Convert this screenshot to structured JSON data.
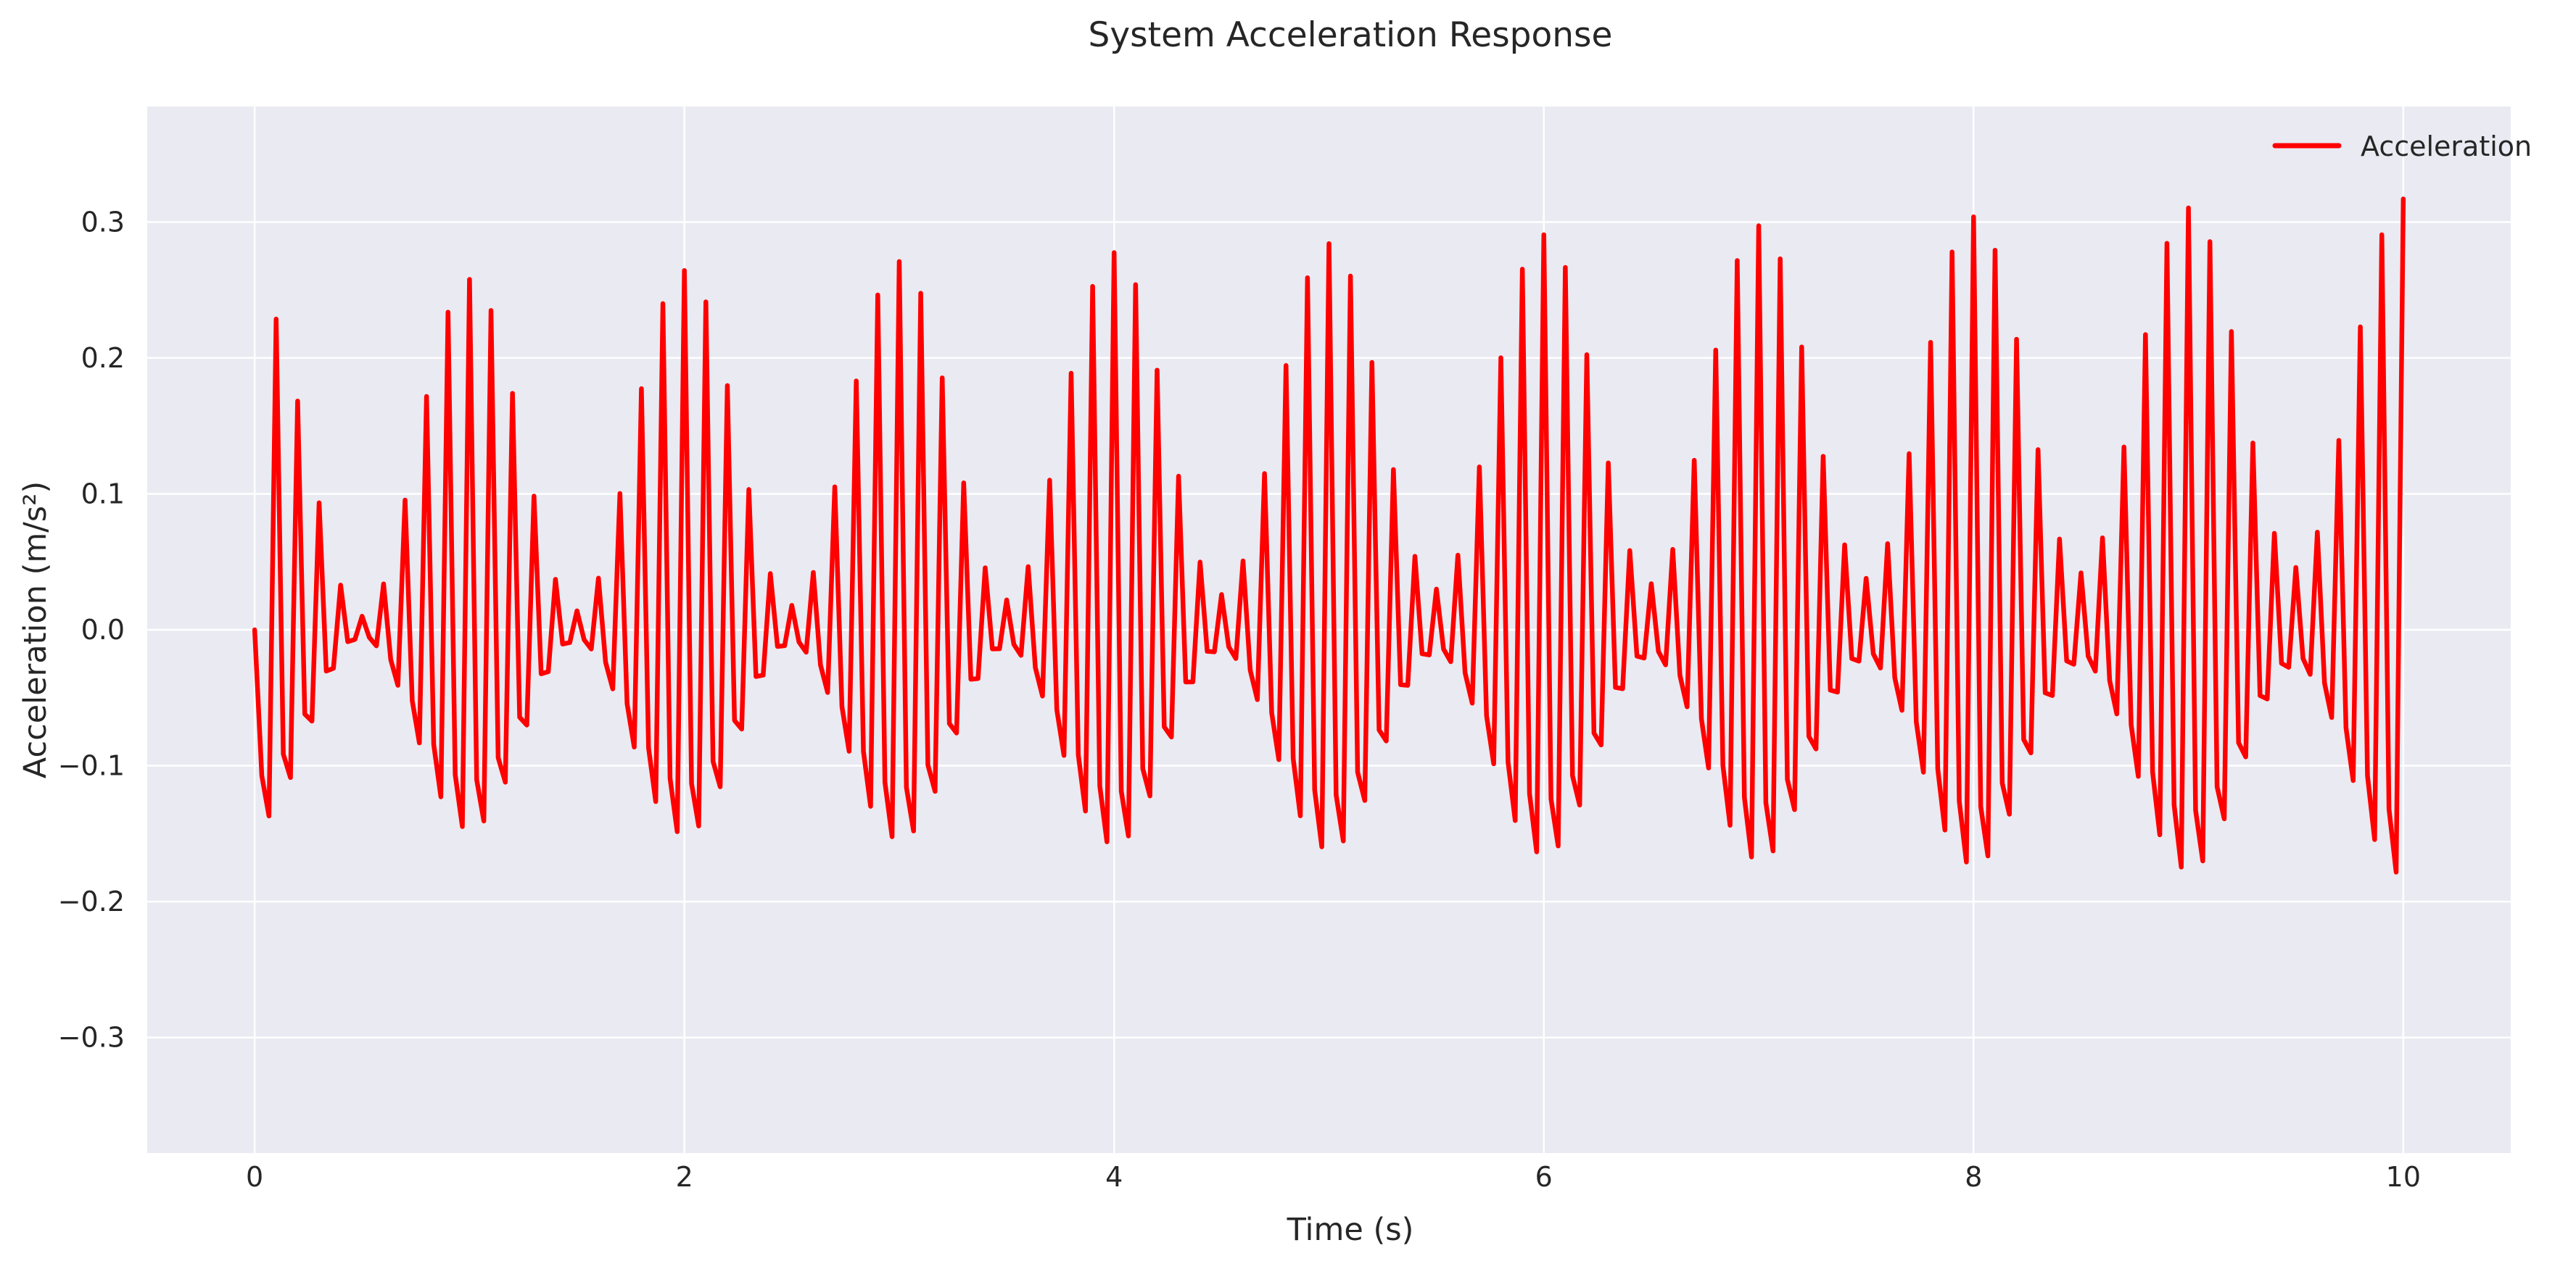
{
  "chart_data": {
    "type": "line",
    "title": "System Acceleration Response",
    "xlabel": "Time (s)",
    "ylabel": "Acceleration (m/s²)",
    "xlim": [
      -0.5,
      10.5
    ],
    "ylim": [
      -0.385,
      0.385
    ],
    "xticks": [
      0,
      2,
      4,
      6,
      8,
      10
    ],
    "xtick_labels": [
      "0",
      "2",
      "4",
      "6",
      "8",
      "10"
    ],
    "yticks": [
      -0.3,
      -0.2,
      -0.1,
      0.0,
      0.1,
      0.2,
      0.3
    ],
    "ytick_labels": [
      "−0.3",
      "−0.2",
      "−0.1",
      "0.0",
      "0.1",
      "0.2",
      "0.3"
    ],
    "grid": true,
    "legend_position": "top-right",
    "background_color": "#eaeaf2",
    "x_range": [
      0,
      10
    ],
    "sample_count": 301,
    "envelope": {
      "low_amplitude_start": 0.008,
      "low_amplitude_end": 0.048,
      "high_amplitude_start": 0.252,
      "high_amplitude_end": 0.318,
      "slow_period_s": 1.0,
      "fast_period_s": 0.1
    },
    "series": [
      {
        "name": "Acceleration",
        "color": "#ff0000"
      }
    ]
  }
}
